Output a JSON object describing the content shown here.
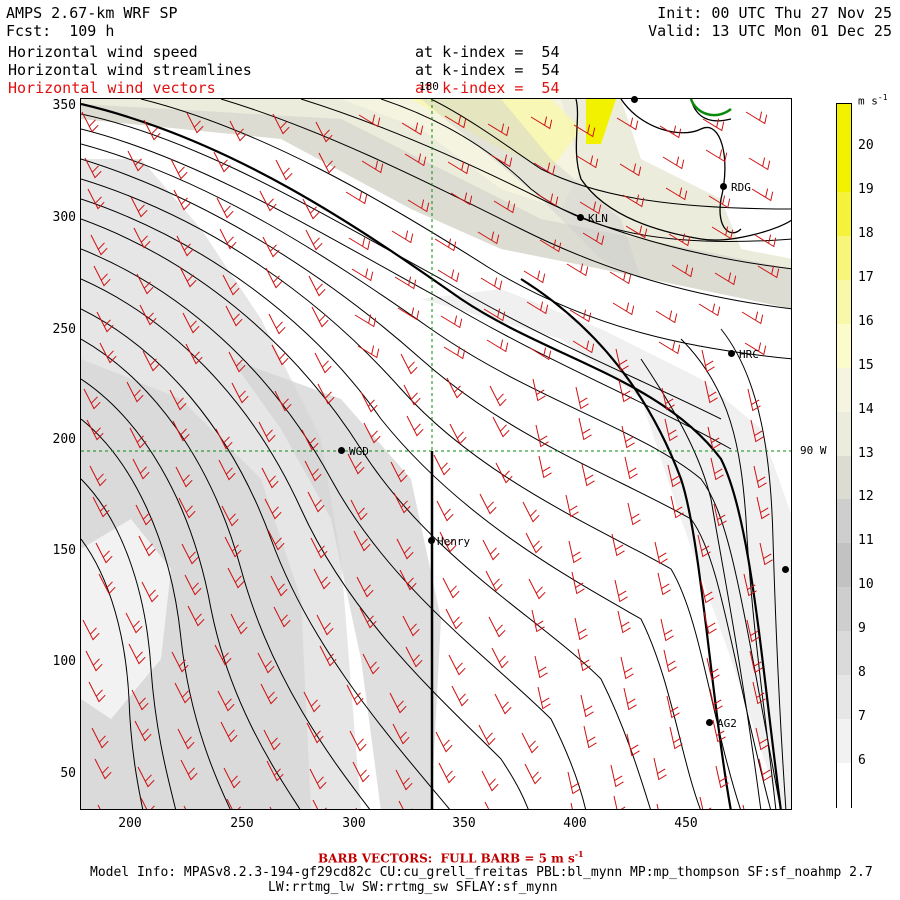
{
  "header": {
    "model_title": "AMPS 2.67-km WRF SP",
    "forecast": "Fcst:  109 h",
    "init": "Init: 00 UTC Thu 27 Nov 25",
    "valid": "Valid: 13 UTC Mon 01 Dec 25",
    "fields": [
      {
        "name": "Horizontal wind speed",
        "level": "at k-index =  54",
        "color": "#000000"
      },
      {
        "name": "Horizontal wind streamlines",
        "level": "at k-index =  54",
        "color": "#000000"
      },
      {
        "name": "Horizontal wind vectors",
        "level": "at k-index =  54",
        "color": "#e01010"
      }
    ]
  },
  "map": {
    "x_ticks": [
      "200",
      "250",
      "300",
      "350",
      "400",
      "450"
    ],
    "y_ticks": [
      "350",
      "300",
      "250",
      "200",
      "150",
      "100",
      "50"
    ],
    "longitude_label_top": "180",
    "longitude_label_right": "90 W",
    "stations": [
      {
        "name": "RDG"
      },
      {
        "name": "KLN"
      },
      {
        "name": "HRC"
      },
      {
        "name": "WGD"
      },
      {
        "name": "Henry"
      },
      {
        "name": "AG2"
      }
    ]
  },
  "colorbar": {
    "unit": "m s",
    "unit_exp": "-1",
    "levels": [
      "20",
      "19",
      "18",
      "17",
      "16",
      "15",
      "14",
      "13",
      "12",
      "11",
      "10",
      "9",
      "8",
      "7",
      "6"
    ],
    "colors": [
      "#f2f200",
      "#f2f200",
      "#f4f23a",
      "#f7f57a",
      "#f9f8aa",
      "#fbfbcc",
      "#f4f4e0",
      "#ececdc",
      "#dcdcd2",
      "#cecece",
      "#c2c2c2",
      "#cecece",
      "#dadada",
      "#e6e6e6",
      "#f2f2f2",
      "#ffffff"
    ]
  },
  "footer": {
    "barb_label": "BARB VECTORS:  FULL BARB = 5 m s",
    "barb_exp": "-1",
    "model_info": "Model Info: MPASv8.2.3-194-gf29cd82c CU:cu_grell_freitas PBL:bl_mynn MP:mp_thompson SF:sf_noahmp 2.7",
    "model_info2": "LW:rrtmg_lw SW:rrtmg_sw SFLAY:sf_mynn"
  }
}
